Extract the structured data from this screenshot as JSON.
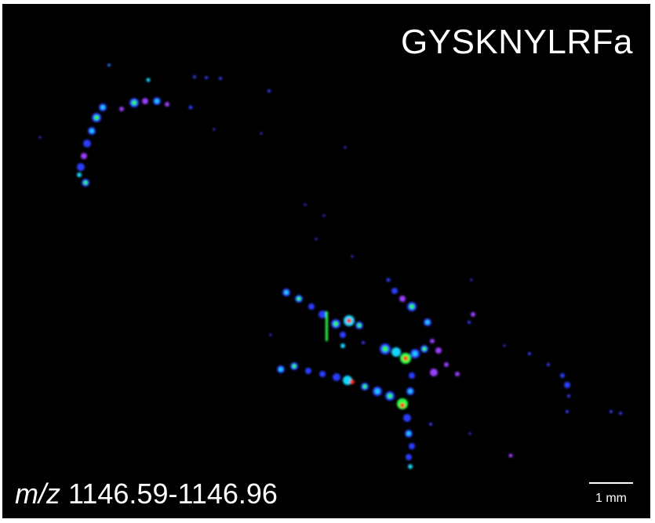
{
  "peptide": "GYSKNYLRFa",
  "mz": {
    "prefix": "m/z",
    "range": "1146.59-1146.96"
  },
  "scale_bar": {
    "label": "1 mm"
  },
  "colors": {
    "background": "#000000",
    "low": "#1f1fff",
    "low_mid": "#9a3cff",
    "mid": "#19d5ff",
    "mid_high": "#2dff4a",
    "high": "#ff2a1a"
  }
}
